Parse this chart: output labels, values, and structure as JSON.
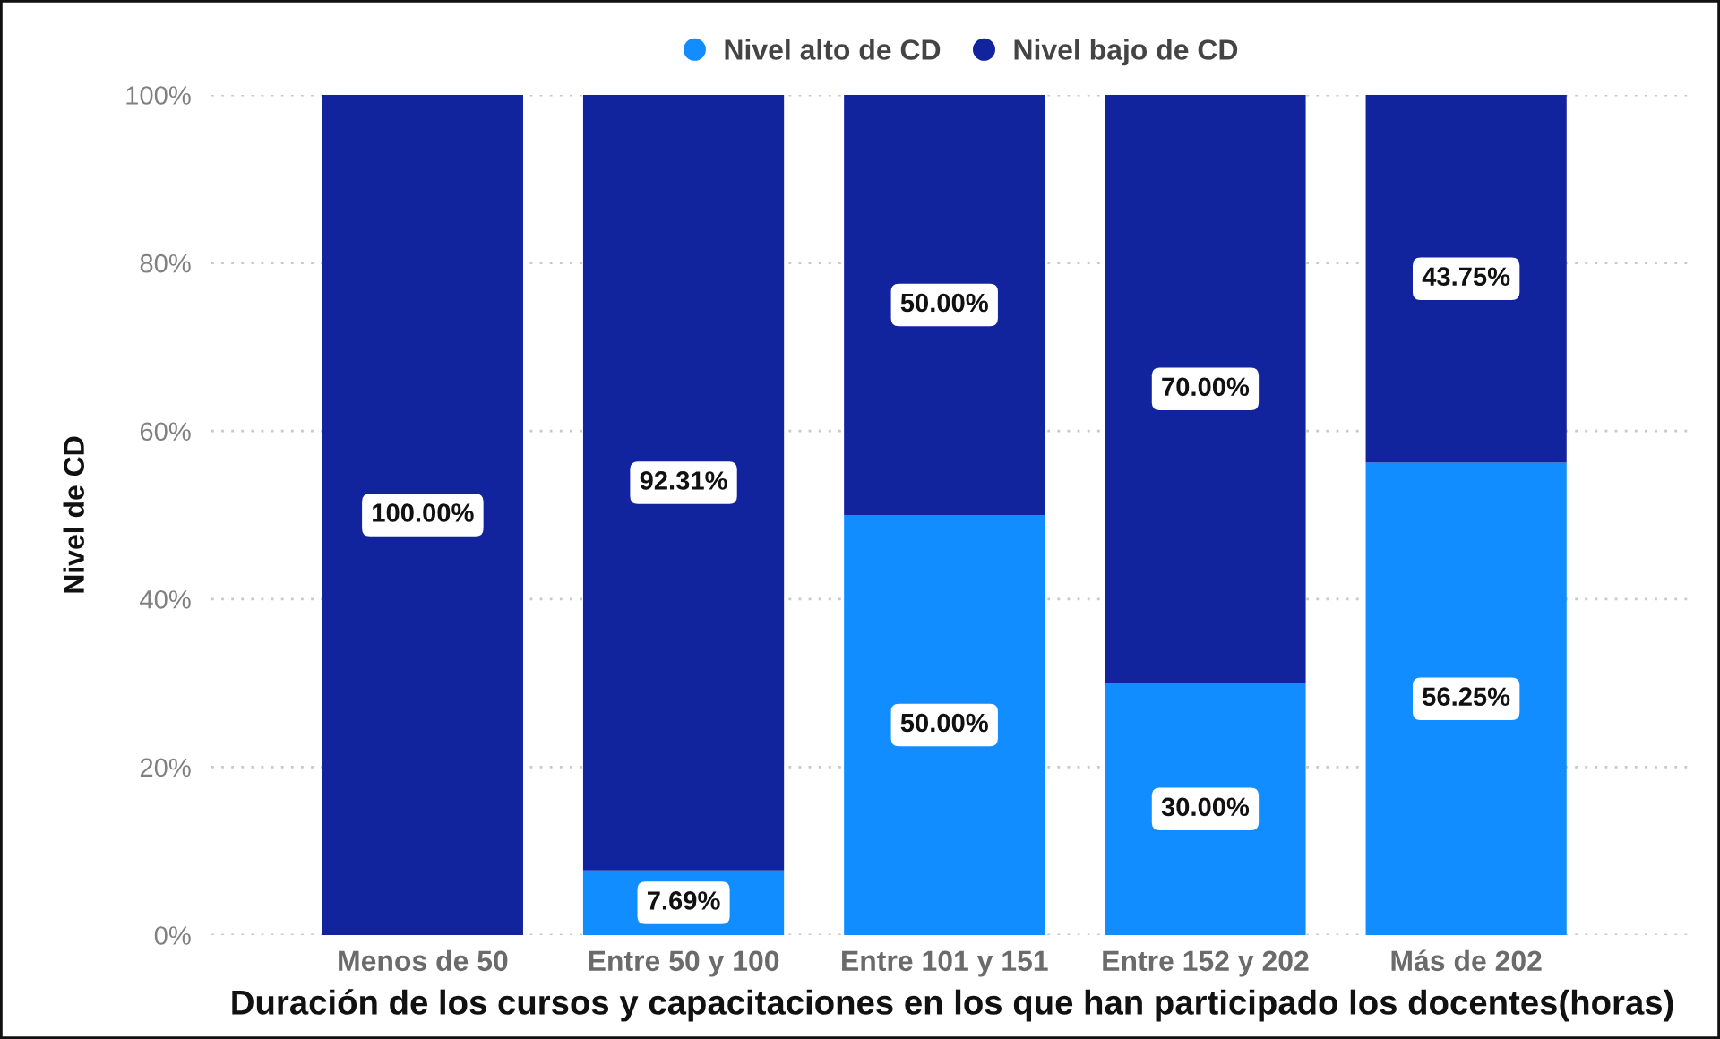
{
  "chart_data": {
    "type": "bar",
    "stacked": true,
    "xlabel": "Duración de los cursos y capacitaciones en los que han participado los docentes(horas)",
    "ylabel": "Nivel de CD",
    "categories": [
      "Menos de 50",
      "Entre 50 y 100",
      "Entre 101 y 151",
      "Entre 152 y 202",
      "Más de 202"
    ],
    "series": [
      {
        "name": "Nivel alto de CD",
        "color": "#118dff",
        "values": [
          null,
          7.69,
          50.0,
          30.0,
          56.25
        ],
        "value_labels": [
          null,
          "7.69%",
          "50.00%",
          "30.00%",
          "56.25%"
        ]
      },
      {
        "name": "Nivel bajo de CD",
        "color": "#12239e",
        "values": [
          100.0,
          92.31,
          50.0,
          70.0,
          43.75
        ],
        "value_labels": [
          "100.00%",
          "92.31%",
          "50.00%",
          "70.00%",
          "43.75%"
        ]
      }
    ],
    "ylim": [
      0,
      100
    ],
    "yticks": [
      {
        "value": 0,
        "label": "0%"
      },
      {
        "value": 20,
        "label": "20%"
      },
      {
        "value": 40,
        "label": "40%"
      },
      {
        "value": 60,
        "label": "60%"
      },
      {
        "value": 80,
        "label": "80%"
      },
      {
        "value": 100,
        "label": "100%"
      }
    ],
    "grid": "y",
    "legend": "top"
  }
}
